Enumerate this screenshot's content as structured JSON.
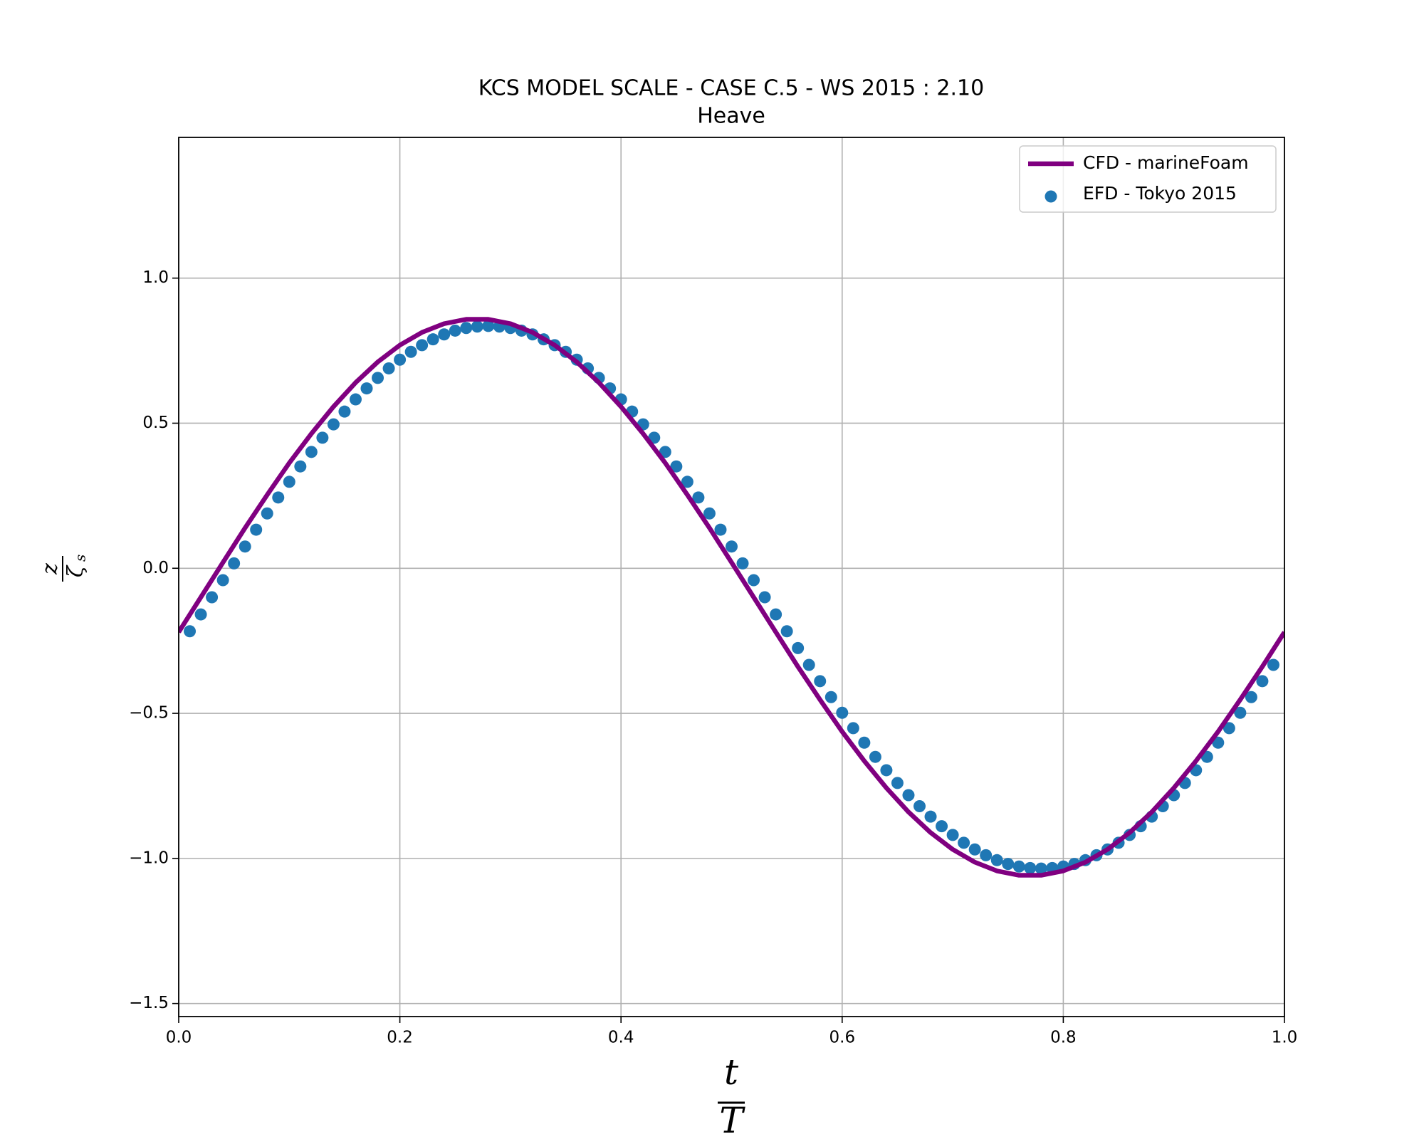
{
  "chart_data": {
    "type": "line",
    "title": [
      "KCS MODEL SCALE - CASE C.5 - WS 2015 : 2.10",
      "Heave"
    ],
    "x_label": {
      "numerator": "t",
      "denominator": "T"
    },
    "y_label": {
      "numerator": "z",
      "denominator": "ζ",
      "subscript": "s"
    },
    "xlim": [
      0,
      1
    ],
    "ylim": [
      -1.545,
      1.485
    ],
    "xticks": [
      {
        "value": 0,
        "label": "0.0"
      },
      0.2,
      0.4,
      0.6,
      0.8,
      {
        "value": 1,
        "label": "1.0"
      }
    ],
    "yticks": [
      {
        "value": -1.5,
        "label": "−1.5"
      },
      {
        "value": -1,
        "label": "−1.0"
      },
      {
        "value": -0.5,
        "label": "−0.5"
      },
      {
        "value": 0,
        "label": "0.0"
      },
      0.5,
      {
        "value": 1,
        "label": "1.0"
      }
    ],
    "grid": true,
    "legend": "upper right",
    "series": [
      {
        "name": "CFD - marineFoam",
        "type": "line",
        "color": "#800080",
        "x": [
          0,
          0.02,
          0.04,
          0.06,
          0.08,
          0.1,
          0.12,
          0.14,
          0.16,
          0.18,
          0.2,
          0.22,
          0.24,
          0.26,
          0.28,
          0.3,
          0.32,
          0.34,
          0.36,
          0.38,
          0.4,
          0.42,
          0.44,
          0.46,
          0.48,
          0.5,
          0.52,
          0.54,
          0.56,
          0.58,
          0.6,
          0.62,
          0.64,
          0.66,
          0.68,
          0.7,
          0.72,
          0.74,
          0.76,
          0.78,
          0.8,
          0.82,
          0.84,
          0.86,
          0.88,
          0.9,
          0.92,
          0.94,
          0.96,
          0.98,
          1
        ],
        "values": [
          -0.22,
          -0.1,
          0.02,
          0.139,
          0.253,
          0.363,
          0.464,
          0.557,
          0.64,
          0.711,
          0.769,
          0.813,
          0.843,
          0.858,
          0.858,
          0.843,
          0.813,
          0.769,
          0.711,
          0.64,
          0.557,
          0.464,
          0.363,
          0.253,
          0.139,
          0.02,
          -0.1,
          -0.22,
          -0.339,
          -0.453,
          -0.563,
          -0.664,
          -0.757,
          -0.84,
          -0.911,
          -0.969,
          -1.013,
          -1.043,
          -1.058,
          -1.058,
          -1.043,
          -1.013,
          -0.969,
          -0.911,
          -0.84,
          -0.757,
          -0.664,
          -0.563,
          -0.453,
          -0.339,
          -0.22
        ]
      },
      {
        "name": "EFD - Tokyo 2015",
        "type": "scatter",
        "color": "#1f77b4",
        "x": [
          0.01,
          0.02,
          0.03,
          0.04,
          0.05,
          0.06,
          0.07,
          0.08,
          0.09,
          0.1,
          0.11,
          0.12,
          0.13,
          0.14,
          0.15,
          0.16,
          0.17,
          0.18,
          0.19,
          0.2,
          0.21,
          0.22,
          0.23,
          0.24,
          0.25,
          0.26,
          0.27,
          0.28,
          0.29,
          0.3,
          0.31,
          0.32,
          0.33,
          0.34,
          0.35,
          0.36,
          0.37,
          0.38,
          0.39,
          0.4,
          0.41,
          0.42,
          0.43,
          0.44,
          0.45,
          0.46,
          0.47,
          0.48,
          0.49,
          0.5,
          0.51,
          0.52,
          0.53,
          0.54,
          0.55,
          0.56,
          0.57,
          0.58,
          0.59,
          0.6,
          0.61,
          0.62,
          0.63,
          0.64,
          0.65,
          0.66,
          0.67,
          0.68,
          0.69,
          0.7,
          0.71,
          0.72,
          0.73,
          0.74,
          0.75,
          0.76,
          0.77,
          0.78,
          0.79,
          0.8,
          0.81,
          0.82,
          0.83,
          0.84,
          0.85,
          0.86,
          0.87,
          0.88,
          0.89,
          0.9,
          0.91,
          0.92,
          0.93,
          0.94,
          0.95,
          0.96,
          0.97,
          0.98,
          0.99
        ],
        "values": [
          -0.217,
          -0.159,
          -0.1,
          -0.041,
          0.017,
          0.075,
          0.133,
          0.189,
          0.244,
          0.298,
          0.351,
          0.401,
          0.45,
          0.496,
          0.54,
          0.582,
          0.62,
          0.656,
          0.689,
          0.719,
          0.746,
          0.769,
          0.789,
          0.806,
          0.819,
          0.828,
          0.833,
          0.835,
          0.833,
          0.828,
          0.819,
          0.806,
          0.789,
          0.769,
          0.746,
          0.719,
          0.689,
          0.656,
          0.62,
          0.582,
          0.54,
          0.496,
          0.45,
          0.401,
          0.351,
          0.298,
          0.244,
          0.189,
          0.133,
          0.075,
          0.017,
          -0.041,
          -0.1,
          -0.159,
          -0.217,
          -0.275,
          -0.333,
          -0.389,
          -0.444,
          -0.498,
          -0.551,
          -0.601,
          -0.65,
          -0.696,
          -0.74,
          -0.782,
          -0.82,
          -0.856,
          -0.889,
          -0.919,
          -0.946,
          -0.969,
          -0.989,
          -1.006,
          -1.019,
          -1.028,
          -1.033,
          -1.035,
          -1.033,
          -1.028,
          -1.019,
          -1.006,
          -0.989,
          -0.969,
          -0.946,
          -0.919,
          -0.889,
          -0.856,
          -0.82,
          -0.782,
          -0.74,
          -0.696,
          -0.65,
          -0.601,
          -0.551,
          -0.498,
          -0.444,
          -0.389,
          -0.333
        ]
      }
    ]
  }
}
